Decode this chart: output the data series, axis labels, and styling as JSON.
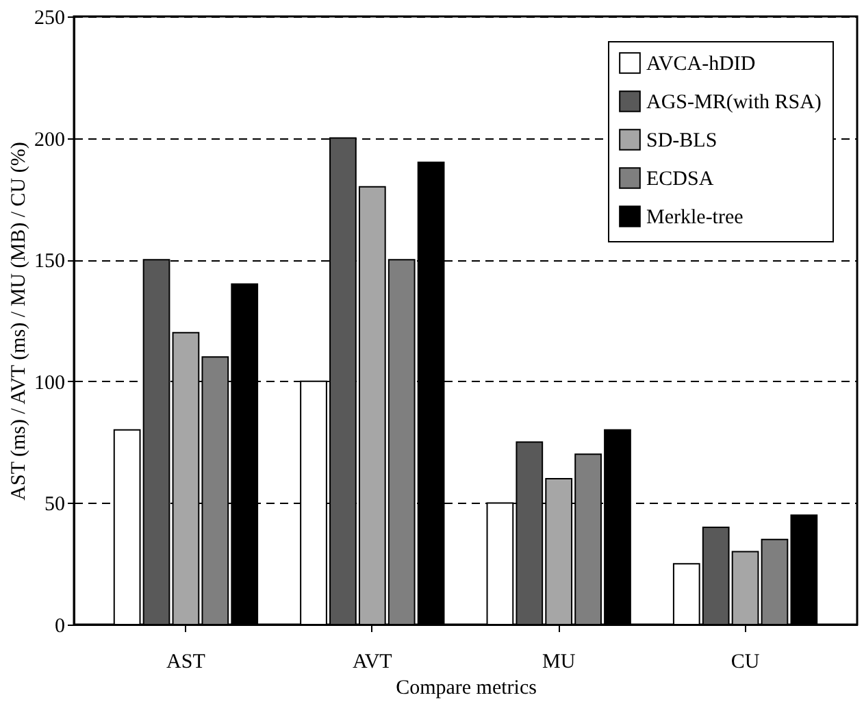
{
  "chart_data": {
    "type": "bar",
    "xlabel": "Compare metrics",
    "ylabel": "AST (ms) / AVT (ms) / MU (MB) / CU (%)",
    "categories": [
      "AST",
      "AVT",
      "MU",
      "CU"
    ],
    "series": [
      {
        "name": "AVCA-hDID",
        "color": "#ffffff",
        "values": [
          80,
          100,
          50,
          25
        ]
      },
      {
        "name": "AGS-MR(with RSA)",
        "color": "#595959",
        "values": [
          150,
          200,
          75,
          40
        ]
      },
      {
        "name": "SD-BLS",
        "color": "#a6a6a6",
        "values": [
          120,
          180,
          60,
          30
        ]
      },
      {
        "name": "ECDSA",
        "color": "#7f7f7f",
        "values": [
          110,
          150,
          70,
          35
        ]
      },
      {
        "name": "Merkle-tree",
        "color": "#000000",
        "values": [
          140,
          190,
          80,
          45
        ]
      }
    ],
    "ylim": [
      0,
      250
    ],
    "yticks": [
      0,
      50,
      100,
      150,
      200,
      250
    ],
    "grid": "y",
    "legend": "top right"
  }
}
